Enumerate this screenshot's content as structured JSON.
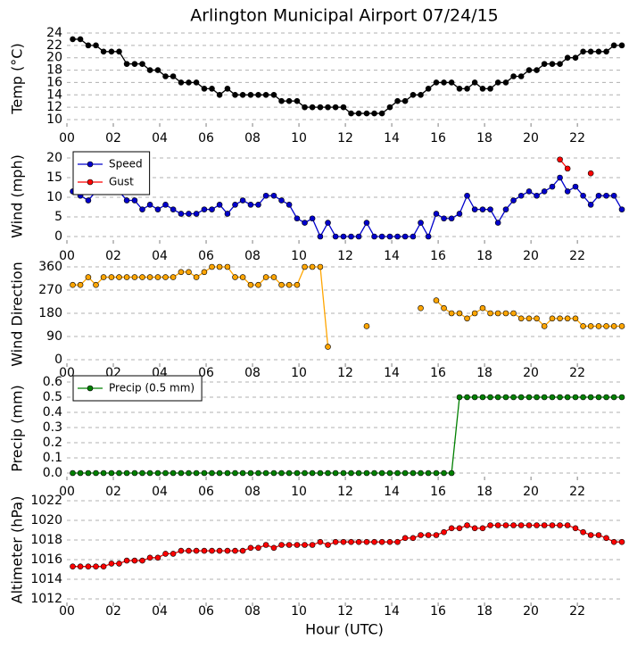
{
  "chart_data": {
    "type": "line",
    "title": "Arlington Municipal Airport 07/24/15",
    "xlabel": "Hour (UTC)",
    "xlim": [
      0,
      23.92
    ],
    "xticks": [
      {
        "value": 0,
        "label": "00"
      },
      {
        "value": 2,
        "label": "02"
      },
      {
        "value": 4,
        "label": "04"
      },
      {
        "value": 6,
        "label": "06"
      },
      {
        "value": 8,
        "label": "08"
      },
      {
        "value": 10,
        "label": "10"
      },
      {
        "value": 12,
        "label": "12"
      },
      {
        "value": 14,
        "label": "14"
      },
      {
        "value": 16,
        "label": "16"
      },
      {
        "value": 18,
        "label": "18"
      },
      {
        "value": 20,
        "label": "20"
      },
      {
        "value": 22,
        "label": "22"
      }
    ],
    "x": [
      0.25,
      0.58,
      0.92,
      1.25,
      1.58,
      1.92,
      2.25,
      2.58,
      2.92,
      3.25,
      3.58,
      3.92,
      4.25,
      4.58,
      4.92,
      5.25,
      5.58,
      5.92,
      6.25,
      6.58,
      6.92,
      7.25,
      7.58,
      7.92,
      8.25,
      8.58,
      8.92,
      9.25,
      9.58,
      9.92,
      10.25,
      10.58,
      10.92,
      11.25,
      11.58,
      11.92,
      12.25,
      12.58,
      12.92,
      13.25,
      13.58,
      13.92,
      14.25,
      14.58,
      14.92,
      15.25,
      15.58,
      15.92,
      16.25,
      16.58,
      16.92,
      17.25,
      17.58,
      17.92,
      18.25,
      18.58,
      18.92,
      19.25,
      19.58,
      19.92,
      20.25,
      20.58,
      20.92,
      21.25,
      21.58,
      21.92,
      22.25,
      22.58,
      22.92,
      23.25,
      23.58,
      23.92
    ],
    "grid": true,
    "panels": [
      {
        "ylabel": "Temp (°C)",
        "ylim": [
          10,
          24
        ],
        "yticks": [
          10,
          12,
          14,
          16,
          18,
          20,
          22,
          24
        ],
        "series": [
          {
            "name": null,
            "color": "#000000",
            "values": [
              23,
              23,
              22,
              22,
              21,
              21,
              21,
              19,
              19,
              19,
              18,
              18,
              17,
              17,
              16,
              16,
              16,
              15,
              15,
              14,
              15,
              14,
              14,
              14,
              14,
              14,
              14,
              13,
              13,
              13,
              12,
              12,
              12,
              12,
              12,
              12,
              11,
              11,
              11,
              11,
              11,
              12,
              13,
              13,
              14,
              14,
              15,
              16,
              16,
              16,
              15,
              15,
              16,
              15,
              15,
              16,
              16,
              17,
              17,
              18,
              18,
              19,
              19,
              19,
              20,
              20,
              21,
              21,
              21,
              21,
              22,
              22
            ]
          }
        ]
      },
      {
        "ylabel": "Wind (mph)",
        "ylim": [
          0,
          20
        ],
        "yticks": [
          0,
          5,
          10,
          15,
          20
        ],
        "legend": "upper left",
        "series": [
          {
            "name": "Speed",
            "color": "#0000cc",
            "values": [
              11.5,
              10.4,
              9.2,
              11.5,
              12.7,
              12.7,
              11.5,
              9.2,
              9.2,
              6.9,
              8.1,
              6.9,
              8.1,
              6.9,
              5.8,
              5.8,
              5.8,
              6.9,
              6.9,
              8.1,
              5.8,
              8.1,
              9.2,
              8.1,
              8.1,
              10.4,
              10.4,
              9.2,
              8.1,
              4.6,
              3.5,
              4.6,
              0,
              3.5,
              0,
              0,
              0,
              0,
              3.5,
              0,
              0,
              0,
              0,
              0,
              0,
              3.5,
              0,
              5.8,
              4.6,
              4.6,
              5.8,
              10.4,
              6.9,
              6.9,
              6.9,
              3.5,
              6.9,
              9.2,
              10.4,
              11.5,
              10.4,
              11.5,
              12.7,
              15,
              11.5,
              12.7,
              10.4,
              8.1,
              10.4,
              10.4,
              10.4,
              6.9
            ]
          },
          {
            "name": "Gust",
            "color": "#ff0000",
            "values": [
              null,
              null,
              null,
              null,
              null,
              null,
              null,
              null,
              null,
              null,
              null,
              null,
              null,
              null,
              null,
              null,
              null,
              null,
              null,
              null,
              null,
              null,
              null,
              null,
              null,
              null,
              null,
              null,
              null,
              null,
              null,
              null,
              null,
              null,
              null,
              null,
              null,
              null,
              null,
              null,
              null,
              null,
              null,
              null,
              null,
              null,
              null,
              null,
              null,
              null,
              null,
              null,
              null,
              null,
              null,
              null,
              null,
              null,
              null,
              null,
              null,
              null,
              null,
              19.6,
              17.3,
              null,
              null,
              16.1,
              null,
              null,
              null,
              null
            ]
          }
        ]
      },
      {
        "ylabel": "Wind Direction",
        "ylim": [
          0,
          360
        ],
        "yticks": [
          0,
          90,
          180,
          270,
          360
        ],
        "series": [
          {
            "name": null,
            "color": "#ffa500",
            "values": [
              290,
              290,
              320,
              290,
              320,
              320,
              320,
              320,
              320,
              320,
              320,
              320,
              320,
              320,
              340,
              340,
              320,
              340,
              360,
              360,
              360,
              320,
              320,
              290,
              290,
              320,
              320,
              290,
              290,
              290,
              360,
              360,
              360,
              50,
              null,
              null,
              null,
              null,
              130,
              null,
              null,
              null,
              null,
              null,
              null,
              200,
              null,
              230,
              200,
              180,
              180,
              160,
              180,
              200,
              180,
              180,
              180,
              180,
              160,
              160,
              160,
              130,
              160,
              160,
              160,
              160,
              130,
              130,
              130,
              130,
              130,
              130
            ]
          }
        ]
      },
      {
        "ylabel": "Precip (mm)",
        "ylim": [
          0,
          0.6
        ],
        "yticks": [
          {
            "value": 0,
            "label": "0.0"
          },
          0.1,
          0.2,
          0.3,
          0.4,
          0.5,
          0.6
        ],
        "legend": "upper left",
        "series": [
          {
            "name": "Precip (0.5 mm)",
            "color": "#008000",
            "values": [
              0,
              0,
              0,
              0,
              0,
              0,
              0,
              0,
              0,
              0,
              0,
              0,
              0,
              0,
              0,
              0,
              0,
              0,
              0,
              0,
              0,
              0,
              0,
              0,
              0,
              0,
              0,
              0,
              0,
              0,
              0,
              0,
              0,
              0,
              0,
              0,
              0,
              0,
              0,
              0,
              0,
              0,
              0,
              0,
              0,
              0,
              0,
              0,
              0,
              0,
              0.5,
              0.5,
              0.5,
              0.5,
              0.5,
              0.5,
              0.5,
              0.5,
              0.5,
              0.5,
              0.5,
              0.5,
              0.5,
              0.5,
              0.5,
              0.5,
              0.5,
              0.5,
              0.5,
              0.5,
              0.5,
              0.5
            ]
          }
        ]
      },
      {
        "ylabel": "Altimeter (hPa)",
        "ylim": [
          1012,
          1022
        ],
        "yticks": [
          1012,
          1014,
          1016,
          1018,
          1020,
          1022
        ],
        "series": [
          {
            "name": null,
            "color": "#ff0000",
            "values": [
              1015.3,
              1015.3,
              1015.3,
              1015.3,
              1015.3,
              1015.6,
              1015.6,
              1015.9,
              1015.9,
              1015.9,
              1016.2,
              1016.2,
              1016.6,
              1016.6,
              1016.9,
              1016.9,
              1016.9,
              1016.9,
              1016.9,
              1016.9,
              1016.9,
              1016.9,
              1016.9,
              1017.2,
              1017.2,
              1017.5,
              1017.2,
              1017.5,
              1017.5,
              1017.5,
              1017.5,
              1017.5,
              1017.8,
              1017.5,
              1017.8,
              1017.8,
              1017.8,
              1017.8,
              1017.8,
              1017.8,
              1017.8,
              1017.8,
              1017.8,
              1018.2,
              1018.2,
              1018.5,
              1018.5,
              1018.5,
              1018.8,
              1019.2,
              1019.2,
              1019.5,
              1019.2,
              1019.2,
              1019.5,
              1019.5,
              1019.5,
              1019.5,
              1019.5,
              1019.5,
              1019.5,
              1019.5,
              1019.5,
              1019.5,
              1019.5,
              1019.2,
              1018.8,
              1018.5,
              1018.5,
              1018.2,
              1017.8,
              1017.8
            ]
          }
        ]
      }
    ]
  }
}
